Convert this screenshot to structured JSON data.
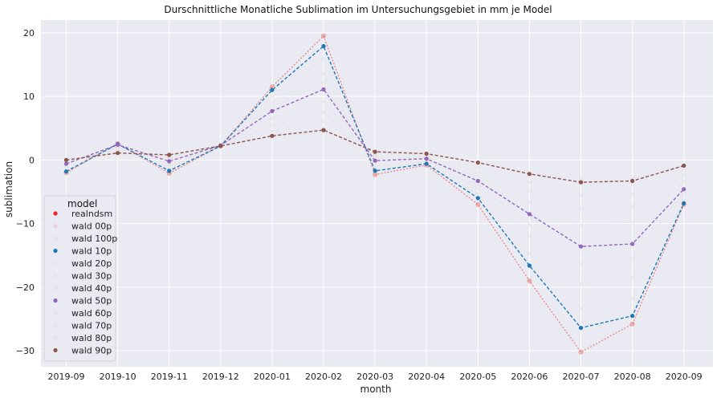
{
  "chart_data": {
    "type": "line",
    "title": "Durschnittliche Monatliche Sublimation im Untersuchungsgebiet in mm je Model",
    "xlabel": "month",
    "ylabel": "sublimation",
    "ylim": [
      -32.5,
      22.0
    ],
    "yticks": [
      20,
      10,
      0,
      -10,
      -20,
      -30
    ],
    "ytick_labels": [
      "20",
      "10",
      "0",
      "−10",
      "−20",
      "−30"
    ],
    "grid": true,
    "legend_position": "lower-left",
    "legend_title": "model",
    "categories": [
      "2019-09",
      "2019-10",
      "2019-11",
      "2019-12",
      "2020-01",
      "2020-02",
      "2020-03",
      "2020-04",
      "2020-05",
      "2020-06",
      "2020-07",
      "2020-08",
      "2020-09"
    ],
    "series": [
      {
        "name": "realndsm",
        "color": "#e8474a",
        "opacity": 0.35,
        "values": [
          -2.0,
          2.6,
          -2.1,
          2.2,
          11.5,
          19.5,
          -2.3,
          -0.8,
          -7.0,
          -19.0,
          -30.2,
          -25.8,
          -7.0
        ]
      },
      {
        "name": "wald 00p",
        "color": "#e8a0a0",
        "opacity": 0.9,
        "values": [
          -2.0,
          2.6,
          -2.1,
          2.2,
          11.5,
          19.5,
          -2.3,
          -0.8,
          -7.0,
          -19.0,
          -30.2,
          -25.8,
          -7.0
        ]
      },
      {
        "name": "wald 100p",
        "color": "#d8d8d8",
        "opacity": 0.3,
        "values": [
          -0.1,
          1.2,
          0.7,
          2.1,
          3.6,
          4.4,
          1.1,
          0.9,
          -0.5,
          -1.9,
          -3.0,
          -2.9,
          -0.8
        ]
      },
      {
        "name": "wald 10p",
        "color": "#1f77b4",
        "opacity": 1.0,
        "values": [
          -1.8,
          2.5,
          -1.7,
          2.2,
          11.0,
          17.9,
          -1.7,
          -0.6,
          -6.0,
          -16.6,
          -26.4,
          -24.5,
          -6.8
        ]
      },
      {
        "name": "wald 20p",
        "color": "#d8d8d8",
        "opacity": 0.3,
        "values": [
          -1.6,
          2.4,
          -1.4,
          2.2,
          10.0,
          16.0,
          -1.4,
          -0.4,
          -5.3,
          -14.8,
          -23.3,
          -21.8,
          -6.3
        ]
      },
      {
        "name": "wald 30p",
        "color": "#d8d8d8",
        "opacity": 0.3,
        "values": [
          -1.2,
          2.3,
          -1.0,
          2.2,
          9.0,
          13.5,
          -1.0,
          -0.2,
          -4.5,
          -12.0,
          -19.5,
          -18.5,
          -5.5
        ]
      },
      {
        "name": "wald 40p",
        "color": "#d8d8d8",
        "opacity": 0.3,
        "values": [
          -0.8,
          2.3,
          -0.6,
          2.2,
          8.4,
          12.2,
          -0.5,
          0.0,
          -3.9,
          -10.2,
          -16.3,
          -15.6,
          -5.0
        ]
      },
      {
        "name": "wald 50p",
        "color": "#9467bd",
        "opacity": 1.0,
        "values": [
          -0.6,
          2.4,
          -0.2,
          2.3,
          7.7,
          11.1,
          -0.1,
          0.2,
          -3.3,
          -8.5,
          -13.6,
          -13.2,
          -4.6
        ]
      },
      {
        "name": "wald 60p",
        "color": "#d8d8d8",
        "opacity": 0.3,
        "values": [
          -0.4,
          2.0,
          0.1,
          2.3,
          6.6,
          9.2,
          0.3,
          0.4,
          -2.6,
          -6.6,
          -10.2,
          -9.8,
          -3.4
        ]
      },
      {
        "name": "wald 70p",
        "color": "#d8d8d8",
        "opacity": 0.3,
        "values": [
          -0.2,
          1.7,
          0.4,
          2.2,
          5.4,
          7.5,
          0.7,
          0.6,
          -1.9,
          -4.9,
          -7.6,
          -7.3,
          -2.4
        ]
      },
      {
        "name": "wald 80p",
        "color": "#d8d8d8",
        "opacity": 0.3,
        "values": [
          -0.1,
          1.4,
          0.6,
          2.2,
          4.6,
          6.0,
          1.0,
          0.8,
          -1.2,
          -3.5,
          -5.5,
          -5.3,
          -1.6
        ]
      },
      {
        "name": "wald 90p",
        "color": "#8c564b",
        "opacity": 1.0,
        "values": [
          0.0,
          1.1,
          0.8,
          2.2,
          3.8,
          4.7,
          1.3,
          1.0,
          -0.4,
          -2.2,
          -3.5,
          -3.3,
          -0.9
        ]
      }
    ]
  }
}
